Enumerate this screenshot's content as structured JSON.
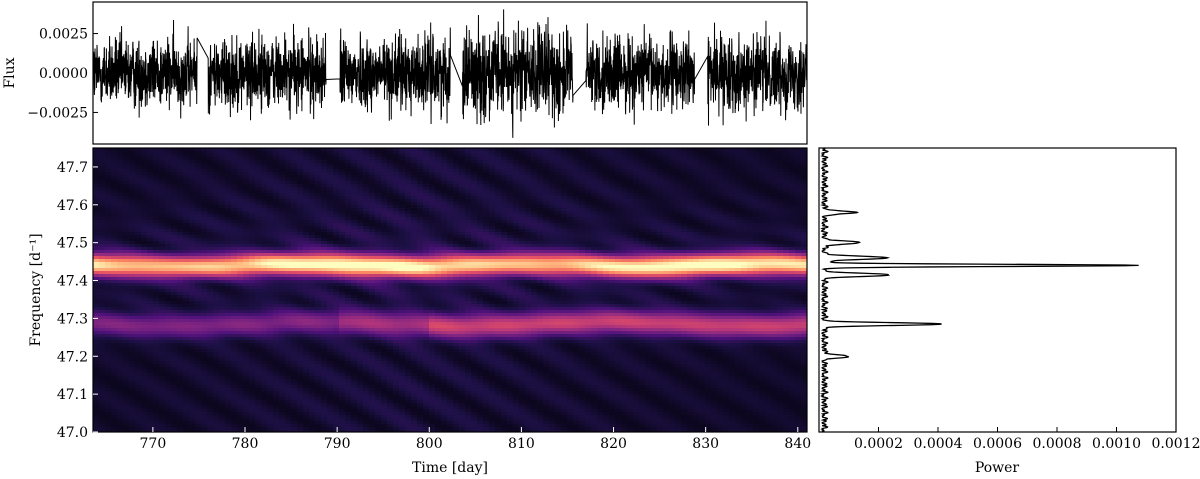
{
  "chart_data": [
    {
      "type": "line",
      "panel": "light-curve",
      "ylabel": "Flux",
      "xlim": [
        763.5,
        841.0
      ],
      "ylim": [
        -0.0045,
        0.0045
      ],
      "yticks": [
        -0.0025,
        0.0,
        0.0025
      ],
      "ytick_labels": [
        "−0.0025",
        "0.0000",
        "0.0025"
      ],
      "line_color": "#000000",
      "segments": [
        {
          "x_start": 763.5,
          "x_end": 774.8,
          "amplitude": 0.0021
        },
        {
          "x_start": 776.0,
          "x_end": 788.8,
          "amplitude": 0.0022
        },
        {
          "x_start": 790.3,
          "x_end": 802.3,
          "amplitude": 0.0022
        },
        {
          "x_start": 803.6,
          "x_end": 815.6,
          "amplitude": 0.0027
        },
        {
          "x_start": 817.0,
          "x_end": 828.8,
          "amplitude": 0.0022
        },
        {
          "x_start": 830.2,
          "x_end": 841.0,
          "amplitude": 0.0022
        }
      ]
    },
    {
      "type": "heatmap",
      "panel": "dynamic-spectrum",
      "xlabel": "Time [day]",
      "ylabel": "Frequency [d⁻¹]",
      "xlim": [
        763.5,
        841.0
      ],
      "ylim": [
        47.0,
        47.75
      ],
      "xticks": [
        770,
        780,
        790,
        800,
        810,
        820,
        830,
        840
      ],
      "yticks": [
        47.0,
        47.1,
        47.2,
        47.3,
        47.4,
        47.5,
        47.6,
        47.7
      ],
      "ytick_labels": [
        "47.0",
        "47.1",
        "47.2",
        "47.3",
        "47.4",
        "47.5",
        "47.6",
        "47.7"
      ],
      "colormap": "magma",
      "bands": [
        {
          "frequency": 47.44,
          "relative_power": 1.0
        },
        {
          "frequency": 47.285,
          "relative_power": 0.42
        }
      ]
    },
    {
      "type": "line",
      "panel": "periodogram",
      "xlabel": "Power",
      "xlim": [
        0.0,
        0.0012
      ],
      "ylim": [
        47.0,
        47.75
      ],
      "xticks": [
        0.0002,
        0.0004,
        0.0006,
        0.0008,
        0.001,
        0.0012
      ],
      "xtick_labels": [
        "0.0002",
        "0.0004",
        "0.0006",
        "0.0008",
        "0.0010",
        "0.0012"
      ],
      "line_color": "#000000",
      "peaks": [
        {
          "frequency": 47.44,
          "power": 0.00106
        },
        {
          "frequency": 47.285,
          "power": 0.0004
        },
        {
          "frequency": 47.415,
          "power": 0.00022
        },
        {
          "frequency": 47.46,
          "power": 0.00022
        },
        {
          "frequency": 47.5,
          "power": 0.00012
        },
        {
          "frequency": 47.58,
          "power": 0.0001
        },
        {
          "frequency": 47.2,
          "power": 8e-05
        }
      ],
      "noise_floor": 3e-05
    }
  ]
}
